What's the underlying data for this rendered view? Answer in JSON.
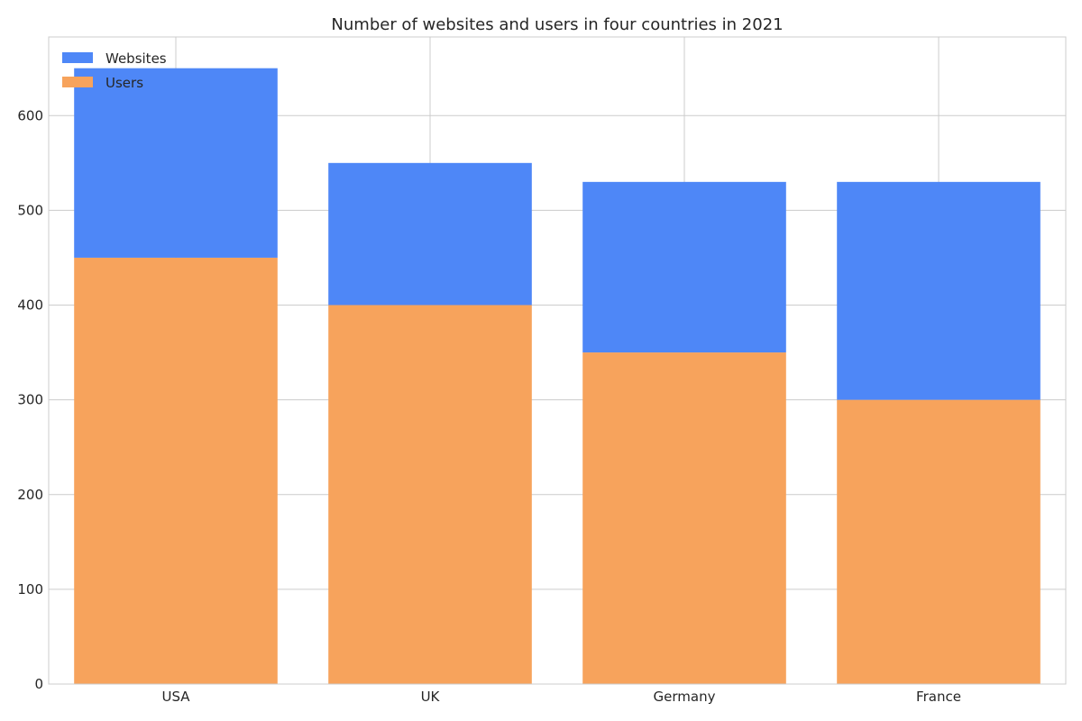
{
  "chart_data": {
    "type": "bar",
    "stacked": true,
    "title": "Number of websites and users in four countries in 2021",
    "xlabel": "",
    "ylabel": "",
    "categories": [
      "USA",
      "UK",
      "Germany",
      "France"
    ],
    "series": [
      {
        "name": "Users",
        "values": [
          450,
          400,
          350,
          300
        ],
        "color": "#F7A35C"
      },
      {
        "name": "Websites",
        "values": [
          200,
          150,
          180,
          230
        ],
        "color": "#4E87F7"
      }
    ],
    "legend_order": [
      "Websites",
      "Users"
    ],
    "ylim": [
      0,
      683
    ],
    "yticks": [
      0,
      100,
      200,
      300,
      400,
      500,
      600
    ],
    "grid": true,
    "legend_position": "upper-left"
  }
}
